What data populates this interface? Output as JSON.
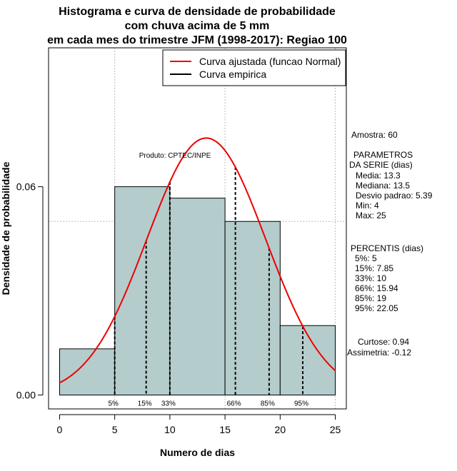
{
  "chart_data": {
    "type": "histogram",
    "title": [
      "Histograma e curva de densidade de probabilidade",
      "com chuva acima de 5 mm",
      "em cada mes do trimestre JFM (1998-2017): Regiao 100"
    ],
    "xlabel": "Numero de dias",
    "ylabel": "Densidade de probabilidade",
    "xlim": [
      -1,
      26
    ],
    "ylim": [
      -0.004,
      0.1
    ],
    "x_ticks": [
      "0",
      "5",
      "10",
      "15",
      "20",
      "25"
    ],
    "y_ticks": [
      "0.00",
      "0.06"
    ],
    "grid_x": [
      5,
      15,
      25
    ],
    "grid_y": [
      0.05,
      0.1
    ],
    "bins": [
      {
        "start": 0,
        "end": 5,
        "density": 0.0133
      },
      {
        "start": 5,
        "end": 10,
        "density": 0.06
      },
      {
        "start": 10,
        "end": 15,
        "density": 0.0567
      },
      {
        "start": 15,
        "end": 20,
        "density": 0.05
      },
      {
        "start": 20,
        "end": 25,
        "density": 0.02
      }
    ],
    "normal_curve": {
      "mean": 13.3,
      "sd": 5.39,
      "x_from": 0,
      "x_to": 25
    },
    "percentiles": [
      {
        "label": "5%",
        "x": 5
      },
      {
        "label": "15%",
        "x": 7.85
      },
      {
        "label": "33%",
        "x": 10
      },
      {
        "label": "66%",
        "x": 15.94
      },
      {
        "label": "85%",
        "x": 19
      },
      {
        "label": "95%",
        "x": 22.05
      }
    ],
    "legend": {
      "placement": "top-right",
      "entries": [
        {
          "label": "Curva ajustada (funcao Normal)",
          "color": "#ee0000"
        },
        {
          "label": "Curva empirica",
          "color": "#000000"
        }
      ]
    },
    "product_label": "Produto: CPTEC/INPE",
    "colors": {
      "bar_fill": "#b5cccc",
      "curve": "#ee0000",
      "grid": "#bbbbbb"
    },
    "stats": {
      "sample": "Amostra: 60",
      "params_title": [
        "PARAMETROS",
        "DA SERIE (dias)"
      ],
      "params": [
        "Media: 13.3",
        "Mediana: 13.5",
        "Desvio padrao: 5.39",
        "Min: 4",
        "Max: 25"
      ],
      "percentiles_title": "PERCENTIS (dias)",
      "percentiles_text": [
        "5%: 5",
        "15%: 7.85",
        "33%: 10",
        "66%: 15.94",
        "85%: 19",
        "95%: 22.05"
      ],
      "shape": [
        "Curtose: 0.94",
        "Assimetria: -0.12"
      ]
    }
  }
}
